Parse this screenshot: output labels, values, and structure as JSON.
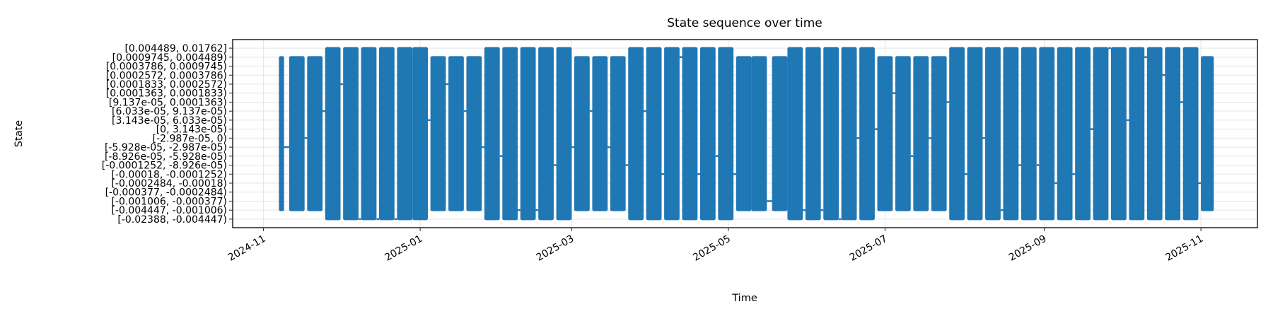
{
  "chart_data": {
    "type": "line",
    "title": "State sequence over time",
    "xlabel": "Time",
    "ylabel": "State",
    "grid": true,
    "legend": "none",
    "colors": {
      "series": "#1f77b4",
      "grid": "#e5e5e5",
      "axis": "#222222"
    },
    "xlim": [
      "2024-10-20",
      "2025-11-23"
    ],
    "ylim": [
      -0.95,
      19.95
    ],
    "x_ticks": [
      {
        "date": "2024-11-01",
        "label": "2024-11"
      },
      {
        "date": "2025-01-01",
        "label": "2025-01"
      },
      {
        "date": "2025-03-01",
        "label": "2025-03"
      },
      {
        "date": "2025-05-01",
        "label": "2025-05"
      },
      {
        "date": "2025-07-01",
        "label": "2025-07"
      },
      {
        "date": "2025-09-01",
        "label": "2025-09"
      },
      {
        "date": "2025-11-01",
        "label": "2025-11"
      }
    ],
    "states": [
      "[-0.02388, -0.004447)",
      "[-0.004447, -0.001006)",
      "[-0.001006, -0.000377)",
      "[-0.000377, -0.0002484)",
      "[-0.0002484, -0.00018)",
      "[-0.00018, -0.0001252)",
      "[-0.0001252, -8.926e-05)",
      "[-8.926e-05, -5.928e-05)",
      "[-5.928e-05, -2.987e-05)",
      "[-2.987e-05, 0)",
      "[0, 3.143e-05)",
      "[3.143e-05, 6.033e-05)",
      "[6.033e-05, 9.137e-05)",
      "[9.137e-05, 0.0001363)",
      "[0.0001363, 0.0001833)",
      "[0.0001833, 0.0002572)",
      "[0.0002572, 0.0003786)",
      "[0.0003786, 0.0009745)",
      "[0.0009745, 0.004489)",
      "[0.004489, 0.01762]"
    ],
    "series": [
      {
        "note_fields": [
          "start",
          "end",
          "min_state",
          "max_state",
          "state_between_blocks"
        ],
        "blocks": [
          [
            "2024-11-07",
            "2024-11-09",
            1,
            18,
            8
          ],
          [
            "2024-11-11",
            "2024-11-17",
            1,
            18,
            9
          ],
          [
            "2024-11-18",
            "2024-11-24",
            1,
            18,
            12
          ],
          [
            "2024-11-25",
            "2024-12-01",
            0,
            19,
            15
          ],
          [
            "2024-12-02",
            "2024-12-08",
            0,
            19,
            0
          ],
          [
            "2024-12-09",
            "2024-12-15",
            0,
            19,
            0
          ],
          [
            "2024-12-16",
            "2024-12-22",
            0,
            19,
            0
          ],
          [
            "2024-12-23",
            "2024-12-29",
            0,
            19,
            12
          ],
          [
            "2024-12-29",
            "2025-01-04",
            0,
            19,
            11
          ],
          [
            "2025-01-05",
            "2025-01-11",
            1,
            18,
            15
          ],
          [
            "2025-01-12",
            "2025-01-18",
            1,
            18,
            12
          ],
          [
            "2025-01-19",
            "2025-01-25",
            1,
            18,
            8
          ],
          [
            "2025-01-26",
            "2025-02-01",
            0,
            19,
            7
          ],
          [
            "2025-02-02",
            "2025-02-08",
            0,
            19,
            1
          ],
          [
            "2025-02-09",
            "2025-02-15",
            0,
            19,
            1
          ],
          [
            "2025-02-16",
            "2025-02-22",
            0,
            19,
            6
          ],
          [
            "2025-02-23",
            "2025-03-01",
            0,
            19,
            8
          ],
          [
            "2025-03-02",
            "2025-03-08",
            1,
            18,
            12
          ],
          [
            "2025-03-09",
            "2025-03-15",
            1,
            18,
            8
          ],
          [
            "2025-03-16",
            "2025-03-22",
            1,
            18,
            6
          ],
          [
            "2025-03-23",
            "2025-03-29",
            0,
            19,
            12
          ],
          [
            "2025-03-30",
            "2025-04-05",
            0,
            19,
            5
          ],
          [
            "2025-04-06",
            "2025-04-12",
            0,
            19,
            18
          ],
          [
            "2025-04-13",
            "2025-04-19",
            0,
            19,
            5
          ],
          [
            "2025-04-20",
            "2025-04-26",
            0,
            19,
            7
          ],
          [
            "2025-04-27",
            "2025-05-03",
            0,
            19,
            5
          ],
          [
            "2025-05-04",
            "2025-05-10",
            1,
            18,
            2
          ],
          [
            "2025-05-10",
            "2025-05-16",
            1,
            18,
            2
          ],
          [
            "2025-05-18",
            "2025-05-24",
            1,
            18,
            14
          ],
          [
            "2025-05-24",
            "2025-05-30",
            0,
            19,
            1
          ],
          [
            "2025-05-31",
            "2025-06-06",
            0,
            19,
            1
          ],
          [
            "2025-06-07",
            "2025-06-13",
            0,
            19,
            0
          ],
          [
            "2025-06-14",
            "2025-06-20",
            0,
            19,
            9
          ],
          [
            "2025-06-21",
            "2025-06-27",
            0,
            19,
            10
          ],
          [
            "2025-06-28",
            "2025-07-04",
            1,
            18,
            14
          ],
          [
            "2025-07-05",
            "2025-07-11",
            1,
            18,
            7
          ],
          [
            "2025-07-12",
            "2025-07-18",
            1,
            18,
            9
          ],
          [
            "2025-07-19",
            "2025-07-25",
            1,
            18,
            13
          ],
          [
            "2025-07-26",
            "2025-08-01",
            0,
            19,
            5
          ],
          [
            "2025-08-02",
            "2025-08-08",
            0,
            19,
            9
          ],
          [
            "2025-08-09",
            "2025-08-15",
            0,
            19,
            1
          ],
          [
            "2025-08-16",
            "2025-08-22",
            0,
            19,
            6
          ],
          [
            "2025-08-23",
            "2025-08-29",
            0,
            19,
            6
          ],
          [
            "2025-08-30",
            "2025-09-05",
            0,
            19,
            4
          ],
          [
            "2025-09-06",
            "2025-09-12",
            0,
            19,
            5
          ],
          [
            "2025-09-13",
            "2025-09-19",
            0,
            19,
            10
          ],
          [
            "2025-09-20",
            "2025-09-26",
            0,
            19,
            19
          ],
          [
            "2025-09-27",
            "2025-10-03",
            0,
            19,
            11
          ],
          [
            "2025-10-04",
            "2025-10-10",
            0,
            19,
            18
          ],
          [
            "2025-10-11",
            "2025-10-17",
            0,
            19,
            16
          ],
          [
            "2025-10-18",
            "2025-10-24",
            0,
            19,
            13
          ],
          [
            "2025-10-25",
            "2025-10-31",
            0,
            19,
            4
          ],
          [
            "2025-11-01",
            "2025-11-06",
            1,
            18,
            null
          ]
        ]
      }
    ]
  }
}
